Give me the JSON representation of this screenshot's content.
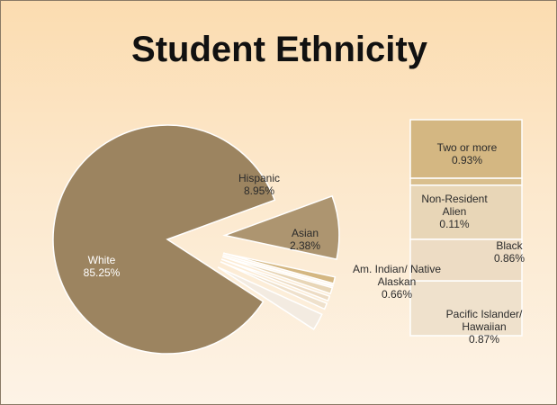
{
  "slide": {
    "title": "Student Ethnicity"
  },
  "colors": {
    "white": "#9c8460",
    "hispanic": "#ad9570",
    "asian": "#f3ebe1",
    "two_or_more": "#d4b782",
    "non_resident": "#d9bf8e",
    "black": "#e8d6b7",
    "am_indian": "#eddcc4",
    "pacific": "#efe1cc"
  },
  "chart_data": [
    {
      "type": "pie",
      "slices": [
        {
          "name": "White",
          "value": 85.25,
          "label": "White",
          "pct_label": "85.25%"
        },
        {
          "name": "Hispanic",
          "value": 8.95,
          "label": "Hispanic",
          "pct_label": "8.95%"
        },
        {
          "name": "Two or more",
          "value": 0.93
        },
        {
          "name": "Non-Resident Alien",
          "value": 0.11
        },
        {
          "name": "Black",
          "value": 0.86
        },
        {
          "name": "Am. Indian/ Native Alaskan",
          "value": 0.66
        },
        {
          "name": "Pacific Islander/ Hawaiian",
          "value": 0.87
        },
        {
          "name": "Asian",
          "value": 2.38,
          "label": "Asian",
          "pct_label": "2.38%"
        }
      ]
    },
    {
      "type": "bar",
      "stacked": true,
      "segments": [
        {
          "name": "Two or more",
          "value": 0.93,
          "label": "Two or more",
          "pct_label": "0.93%"
        },
        {
          "name": "Non-Resident Alien",
          "value": 0.11,
          "label": "Non-Resident Alien",
          "pct_label": "0.11%"
        },
        {
          "name": "Black",
          "value": 0.86,
          "label": "Black",
          "pct_label": "0.86%"
        },
        {
          "name": "Am. Indian/ Native Alaskan",
          "value": 0.66,
          "label": "Am. Indian/ Native Alaskan",
          "pct_label": "0.66%"
        },
        {
          "name": "Pacific Islander/ Hawaiian",
          "value": 0.87,
          "label": "Pacific Islander/ Hawaiian",
          "pct_label": "0.87%"
        }
      ]
    }
  ]
}
